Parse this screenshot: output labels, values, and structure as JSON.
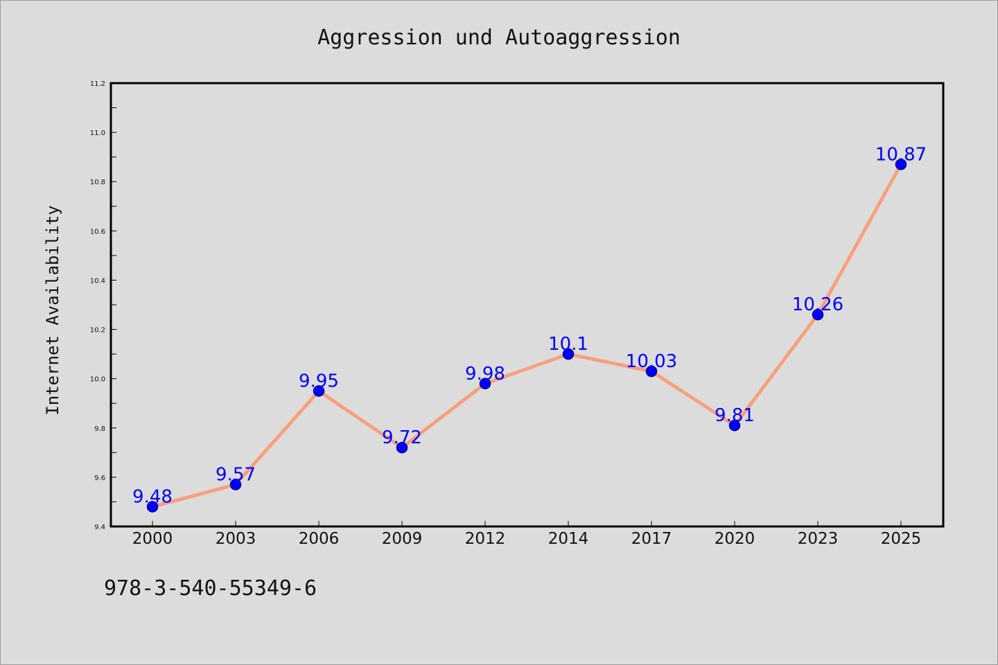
{
  "footer_text": "978-3-540-55349-6",
  "colors": {
    "background": "#dcdcdc",
    "line": "#f7a07c",
    "marker": "#0000ff",
    "marker_edge": "#00008b",
    "data_label": "#0000ff"
  },
  "chart_data": {
    "type": "line",
    "title": "Aggression und Autoaggression",
    "xlabel": "",
    "ylabel": "Internet Availability",
    "categories": [
      "2000",
      "2003",
      "2006",
      "2009",
      "2012",
      "2014",
      "2017",
      "2020",
      "2023",
      "2025"
    ],
    "series": [
      {
        "values": [
          9.48,
          9.57,
          9.95,
          9.72,
          9.98,
          10.1,
          10.03,
          9.81,
          10.26,
          10.87
        ],
        "labels": [
          "9.48",
          "9.57",
          "9.95",
          "9.72",
          "9.98",
          "10.1",
          "10.03",
          "9.81",
          "10.26",
          "10.87"
        ]
      }
    ],
    "ylim": [
      9.4,
      11.2
    ],
    "yticks": [
      "9.4",
      "9.6",
      "9.8",
      "10.0",
      "10.2",
      "10.4",
      "10.6",
      "10.8",
      "11.0",
      "11.2"
    ],
    "grid": false,
    "legend": "none"
  }
}
